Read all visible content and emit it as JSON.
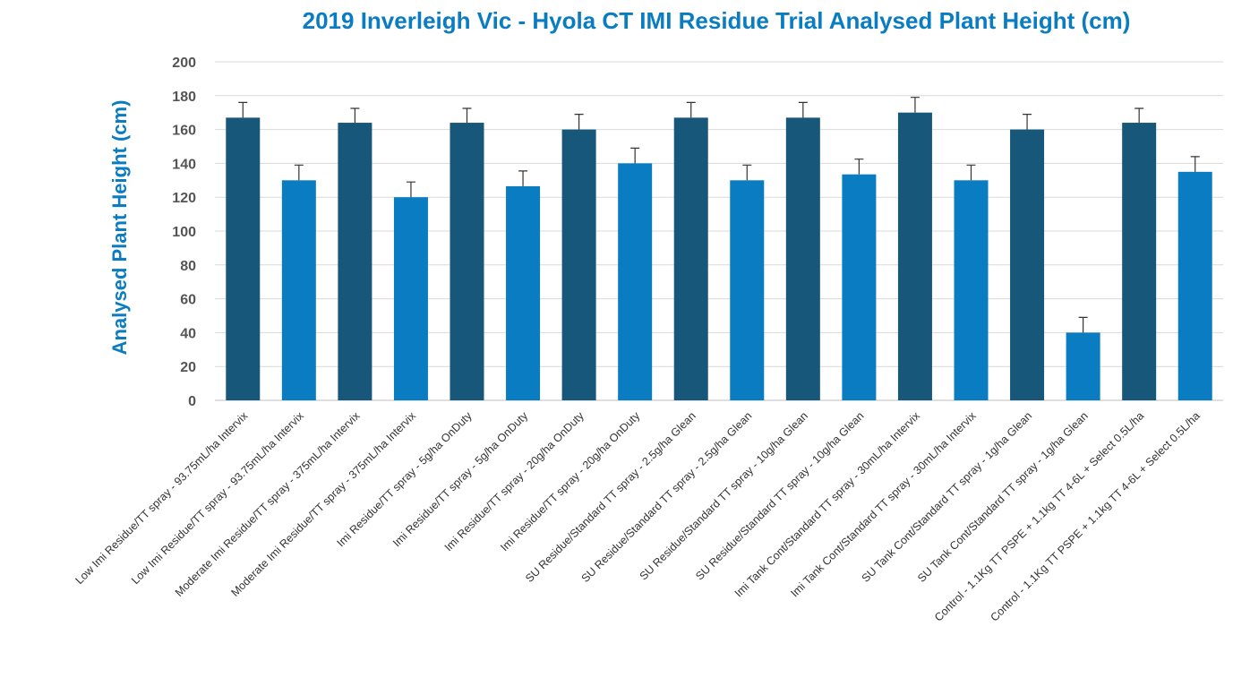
{
  "chart_data": {
    "type": "bar",
    "title": "2019 Inverleigh Vic - Hyola CT IMI Residue Trial Analysed Plant Height (cm)",
    "xlabel": "",
    "ylabel": "Analysed Plant Height (cm)",
    "ylim": [
      0,
      200
    ],
    "yticks": [
      0,
      20,
      40,
      60,
      80,
      100,
      120,
      140,
      160,
      180,
      200
    ],
    "grid": true,
    "categories": [
      "Low Imi Residue/TT spray - 93.75mL/ha Intervix",
      "Low Imi Residue/TT spray - 93.75mL/ha Intervix",
      "Moderate Imi Residue/TT spray - 375mL/ha Intervix",
      "Moderate Imi Residue/TT spray - 375mL/ha Intervix",
      "Imi Residue/TT spray - 5g/ha OnDuty",
      "Imi Residue/TT spray - 5g/ha OnDuty",
      "Imi Residue/TT spray - 20g/ha OnDuty",
      "Imi Residue/TT spray - 20g/ha OnDuty",
      "SU Residue/Standard TT spray - 2.5g/ha Glean",
      "SU Residue/Standard TT spray - 2.5g/ha Glean",
      "SU Residue/Standard TT spray - 10g/ha Glean",
      "SU Residue/Standard TT spray - 10g/ha Glean",
      "Imi Tank Cont/Standard TT spray - 30mL/ha Intervix",
      "Imi Tank Cont/Standard TT spray - 30mL/ha Intervix",
      "SU Tank Cont/Standard TT spray - 1g/ha Glean",
      "SU Tank Cont/Standard TT spray - 1g/ha Glean",
      "Control - 1.1Kg TT PSPE + 1.1kg TT 4-6L + Select 0.5L/ha",
      "Control - 1.1Kg TT PSPE + 1.1kg TT 4-6L + Select 0.5L/ha"
    ],
    "values": [
      167,
      130,
      164,
      120,
      164,
      126.5,
      160,
      140,
      167,
      130,
      167,
      133.5,
      170,
      130,
      160,
      40,
      164,
      135
    ],
    "error": [
      9,
      9,
      8.5,
      9,
      8.5,
      9,
      9,
      9,
      9,
      9,
      9,
      9,
      9,
      9,
      9,
      9,
      8.5,
      9
    ],
    "colors": [
      "#17577a",
      "#0a7cc2"
    ]
  }
}
